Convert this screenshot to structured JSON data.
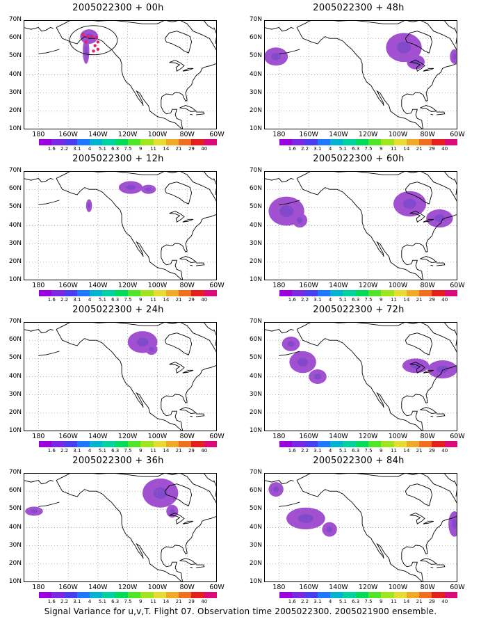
{
  "panels": [
    {
      "title": "2005022300 + 00h"
    },
    {
      "title": "2005022300 + 48h"
    },
    {
      "title": "2005022300 + 12h"
    },
    {
      "title": "2005022300 + 60h"
    },
    {
      "title": "2005022300 + 24h"
    },
    {
      "title": "2005022300 + 72h"
    },
    {
      "title": "2005022300 + 36h"
    },
    {
      "title": "2005022300 + 84h"
    }
  ],
  "map_axes": {
    "lat_labels": [
      "70N",
      "60N",
      "50N",
      "40N",
      "30N",
      "20N",
      "10N"
    ],
    "lon_labels": [
      "180",
      "160W",
      "140W",
      "120W",
      "100W",
      "80W",
      "60W"
    ],
    "lat_range": [
      10,
      70
    ],
    "lon_range": [
      -190,
      -60
    ]
  },
  "colorbar": {
    "labels": [
      "1.6",
      "2.2",
      "3.1",
      "4",
      "5.1",
      "6.3",
      "7.5",
      "9",
      "11",
      "14",
      "21",
      "29",
      "40"
    ],
    "colors": [
      "#9b00e0",
      "#7a28e6",
      "#4a3cf0",
      "#1e78ff",
      "#00b4d2",
      "#00d2a0",
      "#00dc5a",
      "#50e628",
      "#a0e61e",
      "#e6dc32",
      "#f0aa28",
      "#f06e1e",
      "#e61e1e",
      "#dc0a78"
    ]
  },
  "caption": "Signal Variance for u,v,T. Flight 07. Observation time 2005022300. 2005021900 ensemble.",
  "colors": {
    "coast": "#000000",
    "grid": "#888888",
    "field": "#a050d0",
    "field_dark": "#6040c8",
    "track": "#e0206a"
  }
}
